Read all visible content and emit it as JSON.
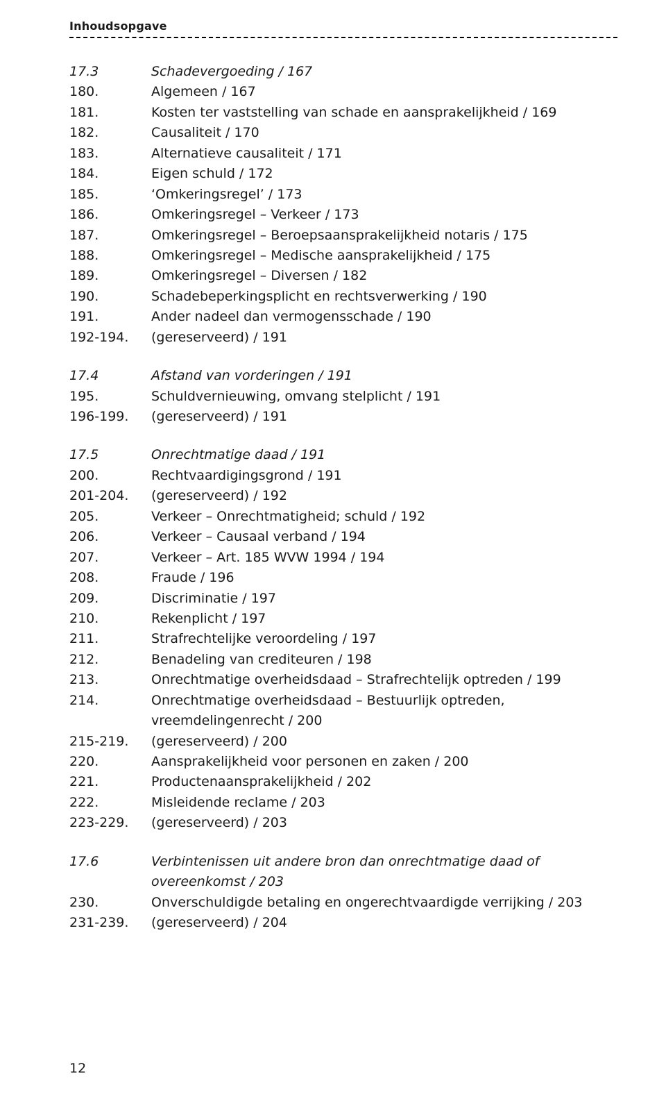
{
  "running_head": "Inhoudsopgave",
  "page_number": "12",
  "blocks": [
    {
      "rows": [
        {
          "num": "17.3",
          "text": "Schadevergoeding / 167",
          "italic": true
        },
        {
          "num": "180.",
          "text": "Algemeen / 167"
        },
        {
          "num": "181.",
          "text": "Kosten ter vaststelling van schade en aansprakelijkheid / 169"
        },
        {
          "num": "182.",
          "text": "Causaliteit / 170"
        },
        {
          "num": "183.",
          "text": "Alternatieve causaliteit / 171"
        },
        {
          "num": "184.",
          "text": "Eigen schuld / 172"
        },
        {
          "num": "185.",
          "text": "‘Omkeringsregel’ / 173"
        },
        {
          "num": "186.",
          "text": "Omkeringsregel – Verkeer / 173"
        },
        {
          "num": "187.",
          "text": "Omkeringsregel – Beroepsaansprakelijkheid notaris / 175"
        },
        {
          "num": "188.",
          "text": "Omkeringsregel – Medische aansprakelijkheid / 175"
        },
        {
          "num": "189.",
          "text": "Omkeringsregel – Diversen / 182"
        },
        {
          "num": "190.",
          "text": "Schadebeperkingsplicht en rechtsverwerking / 190"
        },
        {
          "num": "191.",
          "text": "Ander nadeel dan vermogensschade / 190"
        },
        {
          "num": "192-194.",
          "text": "(gereserveerd) / 191"
        }
      ]
    },
    {
      "rows": [
        {
          "num": "17.4",
          "text": "Afstand van vorderingen / 191",
          "italic": true
        },
        {
          "num": "195.",
          "text": "Schuldvernieuwing, omvang stelplicht / 191"
        },
        {
          "num": "196-199.",
          "text": "(gereserveerd) / 191"
        }
      ]
    },
    {
      "rows": [
        {
          "num": "17.5",
          "text": "Onrechtmatige daad / 191",
          "italic": true
        },
        {
          "num": "200.",
          "text": "Rechtvaardigingsgrond / 191"
        },
        {
          "num": "201-204.",
          "text": "(gereserveerd) / 192"
        },
        {
          "num": "205.",
          "text": "Verkeer – Onrechtmatigheid; schuld / 192"
        },
        {
          "num": "206.",
          "text": "Verkeer – Causaal verband / 194"
        },
        {
          "num": "207.",
          "text": "Verkeer – Art. 185 WVW 1994 / 194"
        },
        {
          "num": "208.",
          "text": "Fraude / 196"
        },
        {
          "num": "209.",
          "text": "Discriminatie / 197"
        },
        {
          "num": "210.",
          "text": "Rekenplicht / 197"
        },
        {
          "num": "211.",
          "text": "Strafrechtelijke veroordeling / 197"
        },
        {
          "num": "212.",
          "text": "Benadeling van crediteuren / 198"
        },
        {
          "num": "213.",
          "text": "Onrechtmatige overheidsdaad – Strafrechtelijk optreden / 199"
        },
        {
          "num": "214.",
          "text": "Onrechtmatige overheidsdaad – Bestuurlijk optreden, vreemdelingenrecht / 200"
        },
        {
          "num": "215-219.",
          "text": "(gereserveerd) / 200"
        },
        {
          "num": "220.",
          "text": "Aansprakelijkheid voor personen en zaken / 200"
        },
        {
          "num": "221.",
          "text": "Productenaansprakelijkheid / 202"
        },
        {
          "num": "222.",
          "text": "Misleidende reclame / 203"
        },
        {
          "num": "223-229.",
          "text": "(gereserveerd) / 203"
        }
      ]
    },
    {
      "rows": [
        {
          "num": "17.6",
          "text": "Verbintenissen uit andere bron dan onrechtmatige daad of overeenkomst / 203",
          "italic": true
        },
        {
          "num": "230.",
          "text": "Onverschuldigde betaling en ongerechtvaardigde verrijking / 203"
        },
        {
          "num": "231-239.",
          "text": "(gereserveerd) / 204"
        }
      ]
    }
  ]
}
